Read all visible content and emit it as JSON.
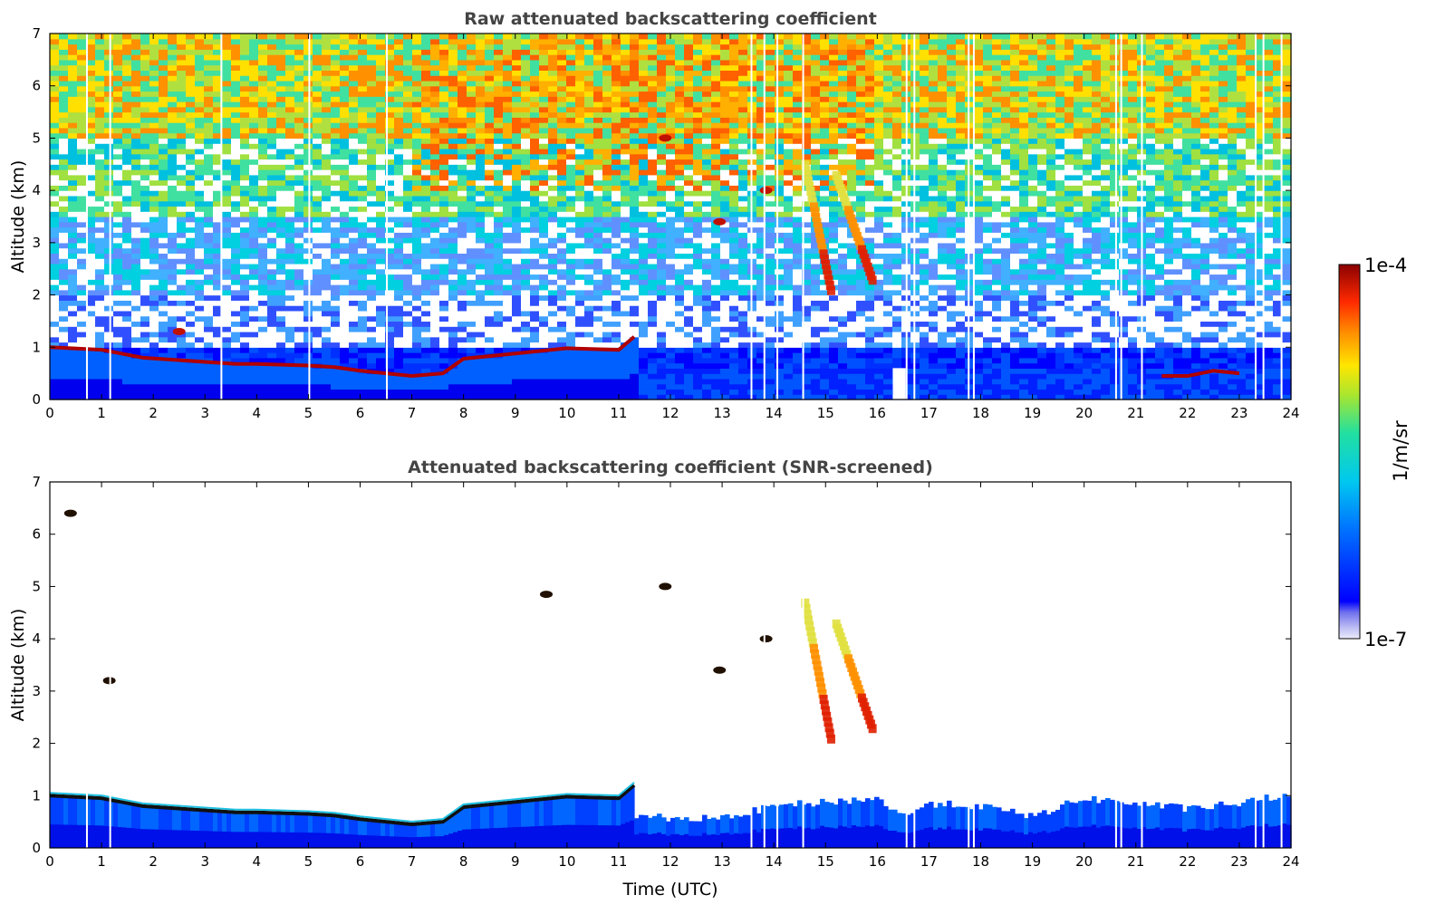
{
  "figure": {
    "colorbar": {
      "label": "1/m/sr",
      "max_label": "1e-4",
      "min_label": "1e-7",
      "scale": "log",
      "colormap": "jet-like with white-lavender at low end"
    }
  },
  "chart_data": [
    {
      "type": "heatmap",
      "title": "Raw attenuated backscattering coefficient",
      "xlabel": "",
      "ylabel": "Altitude (km)",
      "xlim": [
        0,
        24
      ],
      "ylim": [
        0,
        7
      ],
      "xticks": [
        "0",
        "1",
        "2",
        "3",
        "4",
        "5",
        "6",
        "7",
        "8",
        "9",
        "10",
        "11",
        "12",
        "13",
        "14",
        "15",
        "16",
        "17",
        "18",
        "19",
        "20",
        "21",
        "22",
        "23",
        "24"
      ],
      "yticks": [
        "0",
        "1",
        "2",
        "3",
        "4",
        "5",
        "6",
        "7"
      ],
      "x_units": "hours UTC",
      "y_units": "km",
      "boundary_layer_top_km": [
        [
          0,
          1.0
        ],
        [
          1,
          0.95
        ],
        [
          1.8,
          0.8
        ],
        [
          3,
          0.72
        ],
        [
          3.6,
          0.68
        ],
        [
          4,
          0.68
        ],
        [
          5,
          0.65
        ],
        [
          5.5,
          0.62
        ],
        [
          6,
          0.55
        ],
        [
          7,
          0.45
        ],
        [
          7.6,
          0.5
        ],
        [
          8,
          0.78
        ],
        [
          9,
          0.88
        ],
        [
          10,
          0.98
        ],
        [
          11,
          0.95
        ],
        [
          11.3,
          1.2
        ]
      ],
      "late_layer_km": [
        [
          21.5,
          0.45
        ],
        [
          22,
          0.45
        ],
        [
          22.5,
          0.55
        ],
        [
          23,
          0.5
        ]
      ],
      "cirrus_features": [
        {
          "x": [
            14.6,
            15.1
          ],
          "y": [
            2.1,
            4.5
          ]
        },
        {
          "x": [
            15.2,
            15.9
          ],
          "y": [
            2.3,
            4.3
          ]
        }
      ],
      "isolated_features": [
        {
          "x": 11.9,
          "y": 5.0
        },
        {
          "x": 13.85,
          "y": 4.0
        },
        {
          "x": 12.95,
          "y": 3.4
        },
        {
          "x": 2.5,
          "y": 1.3
        }
      ],
      "missing_time_columns_h": [
        0.7,
        1.15,
        3.3,
        5.0,
        6.5,
        13.55,
        13.8,
        14.05,
        14.55,
        16.55,
        16.7,
        17.75,
        17.85,
        20.6,
        20.7,
        21.1,
        23.3,
        23.45,
        23.8
      ],
      "gap_region_h": [
        16.3,
        16.55
      ]
    },
    {
      "type": "heatmap",
      "title": "Attenuated backscattering coefficient (SNR-screened)",
      "xlabel": "Time (UTC)",
      "ylabel": "Altitude (km)",
      "xlim": [
        0,
        24
      ],
      "ylim": [
        0,
        7
      ],
      "xticks": [
        "0",
        "1",
        "2",
        "3",
        "4",
        "5",
        "6",
        "7",
        "8",
        "9",
        "10",
        "11",
        "12",
        "13",
        "14",
        "15",
        "16",
        "17",
        "18",
        "19",
        "20",
        "21",
        "22",
        "23",
        "24"
      ],
      "yticks": [
        "0",
        "1",
        "2",
        "3",
        "4",
        "5",
        "6",
        "7"
      ],
      "x_units": "hours UTC",
      "y_units": "km",
      "boundary_layer_top_km": [
        [
          0,
          1.0
        ],
        [
          1,
          0.95
        ],
        [
          1.8,
          0.8
        ],
        [
          3,
          0.72
        ],
        [
          3.6,
          0.68
        ],
        [
          4,
          0.68
        ],
        [
          5,
          0.65
        ],
        [
          5.5,
          0.62
        ],
        [
          6,
          0.55
        ],
        [
          7,
          0.45
        ],
        [
          7.6,
          0.5
        ],
        [
          8,
          0.78
        ],
        [
          9,
          0.88
        ],
        [
          10,
          0.98
        ],
        [
          11,
          0.95
        ],
        [
          11.3,
          1.2
        ]
      ],
      "screened_blue_top_km": [
        [
          11.3,
          0.6
        ],
        [
          13,
          0.55
        ],
        [
          14,
          0.8
        ],
        [
          16,
          0.95
        ],
        [
          16.5,
          0.6
        ],
        [
          17,
          0.85
        ],
        [
          18,
          0.8
        ],
        [
          19,
          0.6
        ],
        [
          20,
          0.95
        ],
        [
          21,
          0.85
        ],
        [
          22,
          0.75
        ],
        [
          23,
          0.85
        ],
        [
          23.8,
          1.0
        ]
      ],
      "cirrus_features": [
        {
          "x": [
            14.6,
            15.1
          ],
          "y": [
            2.1,
            4.7
          ]
        },
        {
          "x": [
            15.2,
            15.9
          ],
          "y": [
            2.3,
            4.3
          ]
        }
      ],
      "isolated_features": [
        {
          "x": 11.9,
          "y": 5.0
        },
        {
          "x": 13.85,
          "y": 4.0
        },
        {
          "x": 12.95,
          "y": 3.4
        },
        {
          "x": 9.6,
          "y": 4.85
        },
        {
          "x": 0.4,
          "y": 6.4
        },
        {
          "x": 1.15,
          "y": 3.2
        }
      ],
      "missing_time_columns_h": [
        0.7,
        1.15,
        13.55,
        13.8,
        14.05,
        14.55,
        16.55,
        16.7,
        17.75,
        17.85,
        20.6,
        20.7,
        21.1,
        23.3,
        23.45,
        23.8
      ]
    }
  ]
}
